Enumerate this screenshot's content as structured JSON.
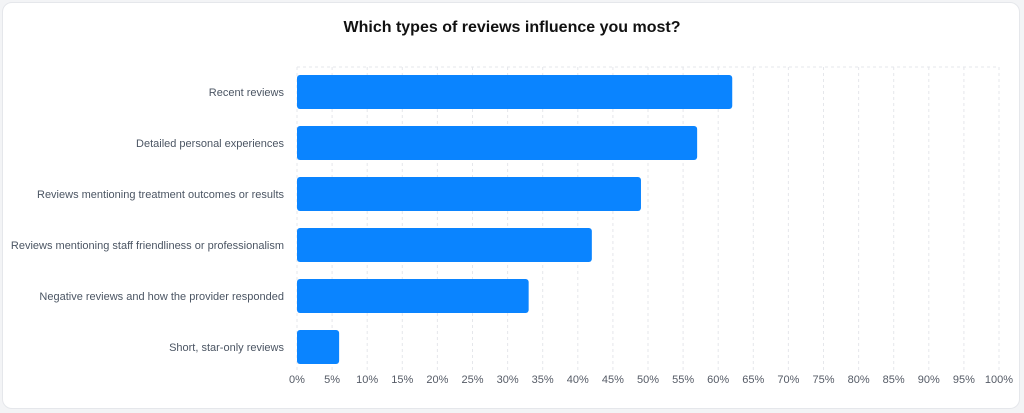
{
  "chart_data": {
    "type": "bar",
    "orientation": "horizontal",
    "title": "Which types of reviews influence you most?",
    "categories": [
      "Recent reviews",
      "Detailed personal experiences",
      "Reviews mentioning treatment outcomes or results",
      "Reviews mentioning staff friendliness or professionalism",
      "Negative reviews and how the provider responded",
      "Short, star-only reviews"
    ],
    "values": [
      62,
      57,
      49,
      42,
      33,
      6
    ],
    "xlim": [
      0,
      100
    ],
    "xticks": [
      "0%",
      "5%",
      "10%",
      "15%",
      "20%",
      "25%",
      "30%",
      "35%",
      "40%",
      "45%",
      "50%",
      "55%",
      "60%",
      "65%",
      "70%",
      "75%",
      "80%",
      "85%",
      "90%",
      "95%",
      "100%"
    ],
    "grid": true,
    "bar_color": "#0a84ff",
    "grid_color": "#e5e7eb"
  }
}
